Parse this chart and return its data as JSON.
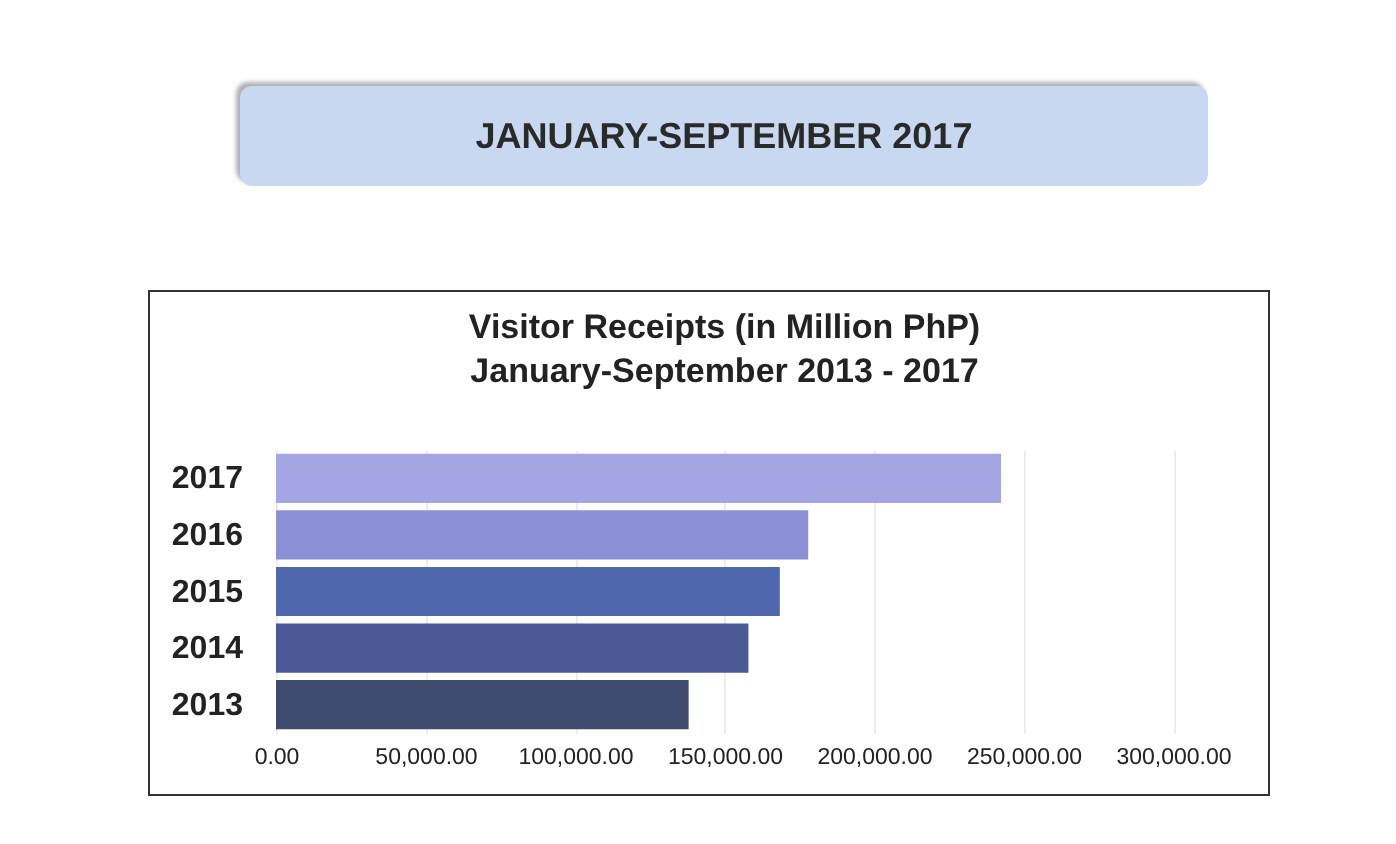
{
  "chart_data": {
    "type": "bar",
    "orientation": "horizontal",
    "title": "Visitor Receipts (in Million PhP)",
    "subtitle": "January-September 2013 - 2017",
    "annotations": [
      "JANUARY-SEPTEMBER 2017"
    ],
    "categories": [
      "2017",
      "2016",
      "2015",
      "2014",
      "2013"
    ],
    "values": [
      242500,
      178000,
      168500,
      158000,
      138000
    ],
    "colors": [
      "#a3a6e3",
      "#8b8fd6",
      "#4e67ad",
      "#4b5a96",
      "#3e4b6f"
    ],
    "xlim": [
      0,
      300000
    ],
    "xticks": [
      {
        "value": 0,
        "label": "0.00"
      },
      {
        "value": 50000,
        "label": "50,000.00"
      },
      {
        "value": 100000,
        "label": "100,000.00"
      },
      {
        "value": 150000,
        "label": "150,000.00"
      },
      {
        "value": 200000,
        "label": "200,000.00"
      },
      {
        "value": 250000,
        "label": "250,000.00"
      },
      {
        "value": 300000,
        "label": "300,000.00"
      }
    ],
    "grid": "x"
  }
}
